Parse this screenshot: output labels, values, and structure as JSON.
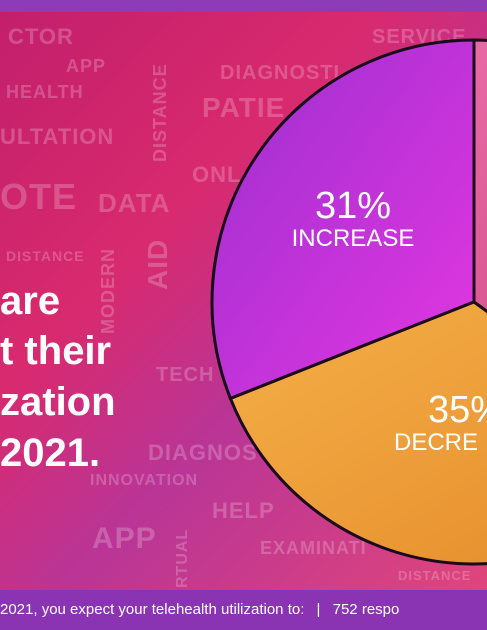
{
  "headline": [
    "are",
    "t their",
    "zation",
    "2021."
  ],
  "footer": {
    "question": "2021, you expect your telehealth utilization to:",
    "separator": "|",
    "responses": "752 respo"
  },
  "background_words": [
    "CTOR",
    "APP",
    "SERVICE",
    "HEALTH",
    "DIAGNOSTI",
    "PATIE",
    "ULTATION",
    "DISTANCE",
    "OTE",
    "DATA",
    "ONL",
    "DISTANCE",
    "AID",
    "MODERN",
    "TECH",
    "DIAGNOS",
    "INNOVATION",
    "HELP",
    "APP",
    "RTUAL",
    "EXAMINATI",
    "DISTANCE"
  ],
  "colors": {
    "increase": "#c238d6",
    "decrease": "#e0558c",
    "other": "#f0a538",
    "outline": "#1a0a1a",
    "footer_bg": "#8a34b3"
  },
  "chart_data": {
    "type": "pie",
    "slices": [
      {
        "label": "INCREASE",
        "value_label": "31%",
        "value": 31
      },
      {
        "label": "DECRE",
        "value_label": "35%",
        "value": 35
      },
      {
        "label": "",
        "value_label": "",
        "value": 34
      }
    ]
  }
}
